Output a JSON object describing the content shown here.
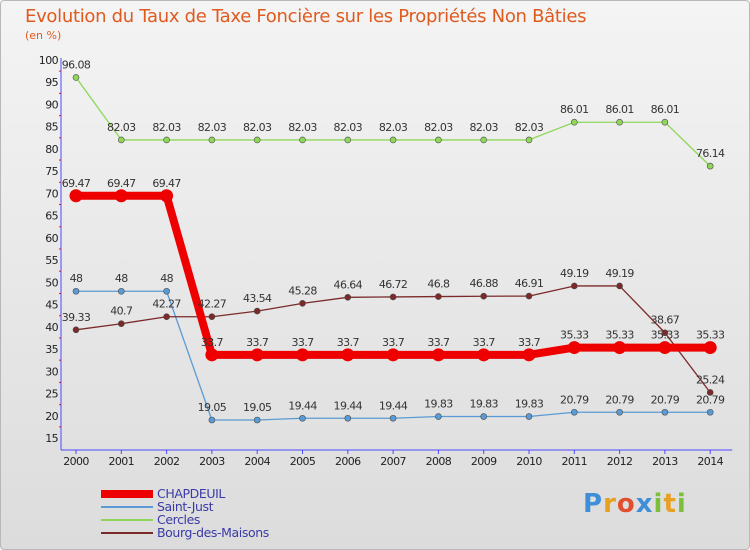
{
  "header": {
    "title": "Evolution du Taux de Taxe Foncière sur les Propriétés Non Bâties",
    "unit": "(en %)"
  },
  "colors": {
    "title": "#e05a1e",
    "axis_text": "#222222",
    "legend_text": "#3a3aa8",
    "axis_line": "#4a4aff"
  },
  "chart_data": {
    "type": "line",
    "title": "Evolution du Taux de Taxe Foncière sur les Propriétés Non Bâties",
    "ylabel": "(en %)",
    "xlabel": "",
    "x": [
      2000,
      2001,
      2002,
      2003,
      2004,
      2005,
      2006,
      2007,
      2008,
      2009,
      2010,
      2011,
      2012,
      2013,
      2014
    ],
    "ylim": [
      15,
      100
    ],
    "yticks": [
      15,
      20,
      25,
      30,
      35,
      40,
      45,
      50,
      55,
      60,
      65,
      70,
      75,
      80,
      85,
      90,
      95,
      100
    ],
    "grid": false,
    "legend_position": "bottom-left",
    "series": [
      {
        "name": "CHAPDEUIL",
        "color": "#ee0000",
        "bold": true,
        "values": [
          69.47,
          69.47,
          69.47,
          33.7,
          33.7,
          33.7,
          33.7,
          33.7,
          33.7,
          33.7,
          33.7,
          35.33,
          35.33,
          35.33,
          35.33
        ],
        "labels": [
          "69.47",
          "69.47",
          "69.47",
          "33.7",
          "33.7",
          "33.7",
          "33.7",
          "33.7",
          "33.7",
          "33.7",
          "33.7",
          "35.33",
          "35.33",
          "35.33",
          "35.33"
        ]
      },
      {
        "name": "Saint-Just",
        "color": "#5b9bd5",
        "values": [
          48,
          48,
          48,
          19.05,
          19.05,
          19.44,
          19.44,
          19.44,
          19.83,
          19.83,
          19.83,
          20.79,
          20.79,
          20.79,
          20.79
        ],
        "labels": [
          "48",
          "48",
          "48",
          "19.05",
          "19.05",
          "19.44",
          "19.44",
          "19.44",
          "19.83",
          "19.83",
          "19.83",
          "20.79",
          "20.79",
          "20.79",
          "20.79"
        ]
      },
      {
        "name": "Cercles",
        "color": "#8fd65a",
        "values": [
          96.08,
          82.03,
          82.03,
          82.03,
          82.03,
          82.03,
          82.03,
          82.03,
          82.03,
          82.03,
          82.03,
          86.01,
          86.01,
          86.01,
          76.14
        ],
        "labels": [
          "96.08",
          "82.03",
          "82.03",
          "82.03",
          "82.03",
          "82.03",
          "82.03",
          "82.03",
          "82.03",
          "82.03",
          "82.03",
          "86.01",
          "86.01",
          "86.01",
          "76.14"
        ]
      },
      {
        "name": "Bourg-des-Maisons",
        "color": "#7b2a2a",
        "values": [
          39.33,
          40.7,
          42.27,
          42.27,
          43.54,
          45.28,
          46.64,
          46.72,
          46.8,
          46.88,
          46.91,
          49.19,
          49.19,
          38.67,
          25.24
        ],
        "labels": [
          "39.33",
          "40.7",
          "42.27",
          "42.27",
          "43.54",
          "45.28",
          "46.64",
          "46.72",
          "46.8",
          "46.88",
          "46.91",
          "49.19",
          "49.19",
          "38.67",
          "25.24"
        ]
      }
    ]
  },
  "logo": {
    "text": "Proxiti",
    "letters": [
      {
        "char": "P",
        "color": "#3f8fd8"
      },
      {
        "char": "r",
        "color": "#e8a020"
      },
      {
        "char": "o",
        "color": "#e05030"
      },
      {
        "char": "x",
        "color": "#3f8fd8"
      },
      {
        "char": "i",
        "color": "#7cbf3a"
      },
      {
        "char": "t",
        "color": "#e8a020"
      },
      {
        "char": "i",
        "color": "#7cbf3a"
      }
    ]
  }
}
